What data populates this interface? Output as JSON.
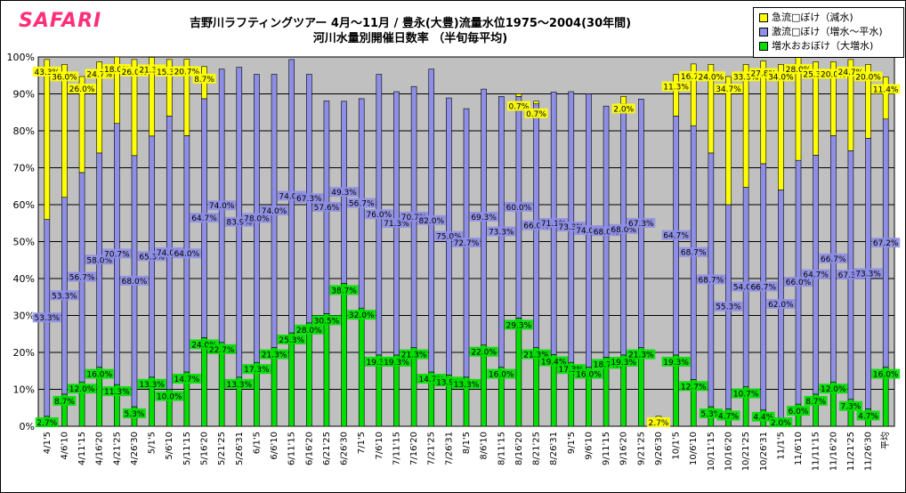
{
  "logo": "SAFARI",
  "colors": {
    "plot_bg": "#c0c0c0",
    "grid": "#000000",
    "green": "#00e000",
    "blue": "#8e8ee6",
    "yellow": "#ffff00",
    "brand": "#ff2f7a"
  },
  "chart_data": {
    "type": "bar",
    "stacked": true,
    "title": "吉野川ラフティングツアー 4月～11月 / 豊永(大豊)流量水位1975～2004(30年間)",
    "subtitle": "河川水量別開催日数率 （半旬毎平均)",
    "xlabel": "",
    "ylabel": "",
    "ylim": [
      0,
      100
    ],
    "yticks": [
      "0%",
      "10%",
      "20%",
      "30%",
      "40%",
      "50%",
      "60%",
      "70%",
      "80%",
      "90%",
      "100%"
    ],
    "grid": true,
    "legend_position": "top-right",
    "categories": [
      "4/1'5",
      "4/6'10",
      "4/11'15",
      "4/16'20",
      "4/21'25",
      "4/26'30",
      "5/1'5",
      "5/6'10",
      "5/11'15",
      "5/16'20",
      "5/21'25",
      "5/26'31",
      "6/1'5",
      "6/6'10",
      "6/11'15",
      "6/16'20",
      "6/21'25",
      "6/26'30",
      "7/1'5",
      "7/6'10",
      "7/11'15",
      "7/16'20",
      "7/21'25",
      "7/26'31",
      "8/1'5",
      "8/6'10",
      "8/11'15",
      "8/16'20",
      "8/21'25",
      "8/26'31",
      "9/1'5",
      "9/6'10",
      "9/11'15",
      "9/16'20",
      "9/21'25",
      "9/26'30",
      "10/1'5",
      "10/6'10",
      "10/11'15",
      "10/16'20",
      "10/21'25",
      "10/26'31",
      "11/1'5",
      "11/6'10",
      "11/11'15",
      "11/16'20",
      "11/21'25",
      "11/26'30",
      "平均"
    ],
    "series": [
      {
        "name": "増水おおぼけ（大増水)",
        "color": "#00e000",
        "values": [
          2.7,
          8.7,
          12.0,
          16.0,
          11.3,
          5.3,
          13.3,
          10.0,
          14.7,
          24.0,
          22.7,
          13.3,
          17.3,
          21.3,
          25.3,
          28.0,
          30.5,
          38.7,
          32.0,
          19.3,
          19.3,
          21.3,
          14.7,
          13.9,
          13.3,
          22.0,
          16.0,
          29.3,
          21.3,
          19.4,
          17.3,
          16.0,
          18.7,
          19.3,
          21.3,
          null,
          19.3,
          12.7,
          5.3,
          4.7,
          10.7,
          4.4,
          2.0,
          6.0,
          8.7,
          12.0,
          7.3,
          4.7,
          16.0
        ]
      },
      {
        "name": "激流□ぼけ（増水～平水)",
        "color": "#8e8ee6",
        "values": [
          53.3,
          53.3,
          56.7,
          58.0,
          70.7,
          68.0,
          65.3,
          74.0,
          64.0,
          64.7,
          74.0,
          83.9,
          78.0,
          74.0,
          74.0,
          67.3,
          57.6,
          49.3,
          56.7,
          76.0,
          71.3,
          70.7,
          82.0,
          75.0,
          72.7,
          69.3,
          73.3,
          60.0,
          66.0,
          71.1,
          73.3,
          74.0,
          68.0,
          68.0,
          67.3,
          null,
          64.7,
          68.7,
          68.7,
          55.3,
          54.0,
          66.7,
          62.0,
          66.0,
          64.7,
          66.7,
          67.3,
          73.3,
          67.2
        ]
      },
      {
        "name": "急流□ぼけ（減水)",
        "color": "#ffff00",
        "values": [
          43.3,
          36.0,
          26.0,
          24.7,
          18.0,
          26.0,
          21.3,
          15.3,
          20.7,
          8.7,
          null,
          null,
          null,
          null,
          null,
          null,
          null,
          null,
          null,
          null,
          null,
          null,
          null,
          null,
          null,
          null,
          null,
          0.7,
          0.7,
          null,
          null,
          null,
          null,
          2.0,
          null,
          2.7,
          11.3,
          16.7,
          24.0,
          34.7,
          33.3,
          27.8,
          34.0,
          28.0,
          25.3,
          20.0,
          24.7,
          20.0,
          11.4
        ]
      }
    ]
  }
}
